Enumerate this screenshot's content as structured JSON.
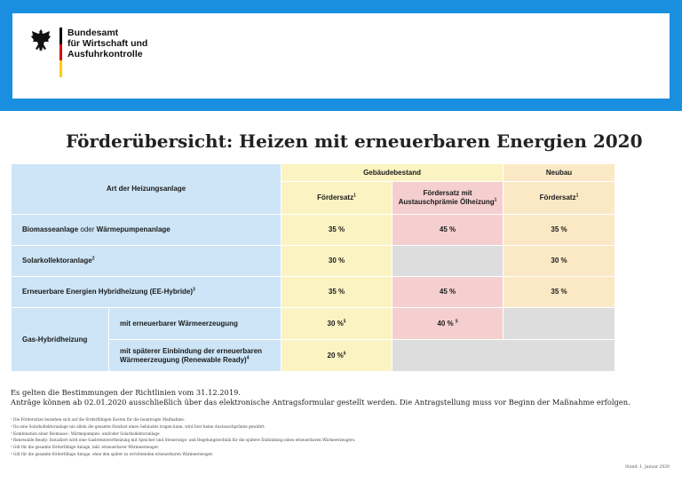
{
  "header": {
    "org_lines": [
      "Bundesamt",
      "für Wirtschaft und",
      "Ausfuhrkontrolle"
    ],
    "flag_colors": [
      "#000000",
      "#dd0000",
      "#ffcc00"
    ],
    "brand_color": "#1a8fe0",
    "logo_icon": "federal-eagle-icon"
  },
  "title": "Förderübersicht: Heizen mit erneuerbaren Energien 2020",
  "table": {
    "col_art": "Art der Heizungsanlage",
    "group_bestand": "Gebäudebestand",
    "group_neubau": "Neubau",
    "sub_foerdersatz": "Fördersatz",
    "sub_foerdersatz_sup": "1",
    "sub_oel_line1": "Fördersatz mit",
    "sub_oel_line2": "Austauschprämie Ölheizung",
    "sub_oel_sup": "1",
    "sub_neubau": "Fördersatz",
    "sub_neubau_sup": "1",
    "rows": {
      "biomasse": {
        "label_a": "Biomasseanlage ",
        "label_or": "oder",
        "label_b": " Wärmepumpenanlage",
        "bestand": "35 %",
        "oel": "45 %",
        "neubau": "35 %"
      },
      "solar": {
        "label": "Solarkollektoranlage",
        "sup": "2",
        "bestand": "30 %",
        "neubau": "30 %"
      },
      "ee_hybrid": {
        "label": "Erneuerbare Energien Hybridheizung (EE-Hybride)",
        "sup": "3",
        "bestand": "35 %",
        "oel": "45 %",
        "neubau": "35 %"
      },
      "gas": {
        "label": "Gas-Hybridheizung",
        "sub1_label": "mit erneuerbarer Wärmeerzeugung",
        "sub1_bestand": "30 %",
        "sub1_bestand_sup": "5",
        "sub1_oel": "40 % ",
        "sub1_oel_sup": "5",
        "sub2_label_line1": "mit späterer Einbindung der erneuerbaren",
        "sub2_label_line2": "Wärmeerzeugung (Renewable Ready)",
        "sub2_sup": "4",
        "sub2_bestand": "20 %",
        "sub2_bestand_sup": "6"
      }
    }
  },
  "notes": [
    "Es gelten die Bestimmungen der Richtlinien vom 31.12.2019.",
    "Anträge können ab 02.01.2020 ausschließlich über das elektronische Antragsformular gestellt werden. Die Antragstellung muss vor Beginn der Maßnahme erfolgen."
  ],
  "footnotes": [
    "¹ Die Fördersätze beziehen sich auf die förderfähigen Kosten für die beantragte Maßnahme.",
    "² Da eine Solarkollektoranlage nie allein die gesamte Heizlast eines Gebäudes tragen kann, wird hier keine Austauschprämie gewährt.",
    "³ Kombination einer Biomasse-, Wärmepumpen- und/oder Solarkollektoranlage",
    "⁴ Renewable Ready: Installiert wird eine Gasbrennwertheizung mit Speicher und Steuerungs- und Regelungstechnik für die spätere Einbindung eines erneuerbaren Wärmeerzeugers.",
    "⁵ Gilt für die gesamte förderfähige Anlage, inkl. erneuerbarer Wärmeerzeuger.",
    "⁶ Gilt für die gesamte förderfähige Anlage, ohne den später zu errichtenden erneuerbaren Wärmeerzeuger."
  ],
  "stand": "Stand: 1. Januar 2020"
}
